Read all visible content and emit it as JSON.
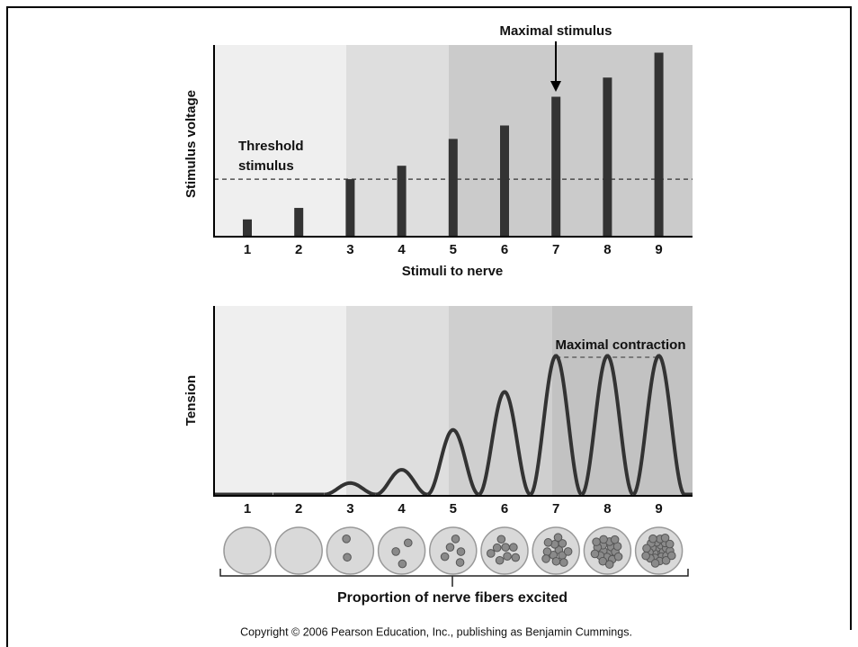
{
  "chart_data": [
    {
      "type": "bar",
      "title": "Maximal stimulus",
      "y_label": "Stimulus voltage",
      "x_label": "Stimuli to nerve",
      "categories": [
        "1",
        "2",
        "3",
        "4",
        "5",
        "6",
        "7",
        "8",
        "9"
      ],
      "values": [
        0.9,
        1.5,
        3.0,
        3.7,
        5.1,
        5.8,
        7.3,
        8.3,
        9.6
      ],
      "color": "#333333",
      "ylim": [
        0,
        10
      ],
      "threshold": 3.0,
      "threshold_label": [
        "Threshold",
        "stimulus"
      ]
    },
    {
      "type": "twitch",
      "y_label": "Tension",
      "annotation": "Maximal contraction",
      "categories": [
        "1",
        "2",
        "3",
        "4",
        "5",
        "6",
        "7",
        "8",
        "9"
      ],
      "values": [
        0,
        0,
        0.6,
        1.3,
        3.4,
        5.4,
        7.3,
        7.3,
        7.3
      ],
      "color": "#333333",
      "ylim": [
        0,
        10
      ],
      "fibers_excited": [
        0,
        0,
        2,
        3,
        5,
        8,
        12,
        18,
        26
      ],
      "caption": "Proportion of nerve fibers excited"
    }
  ],
  "copyright": "Copyright © 2006 Pearson Education, Inc., publishing as Benjamin Cummings."
}
